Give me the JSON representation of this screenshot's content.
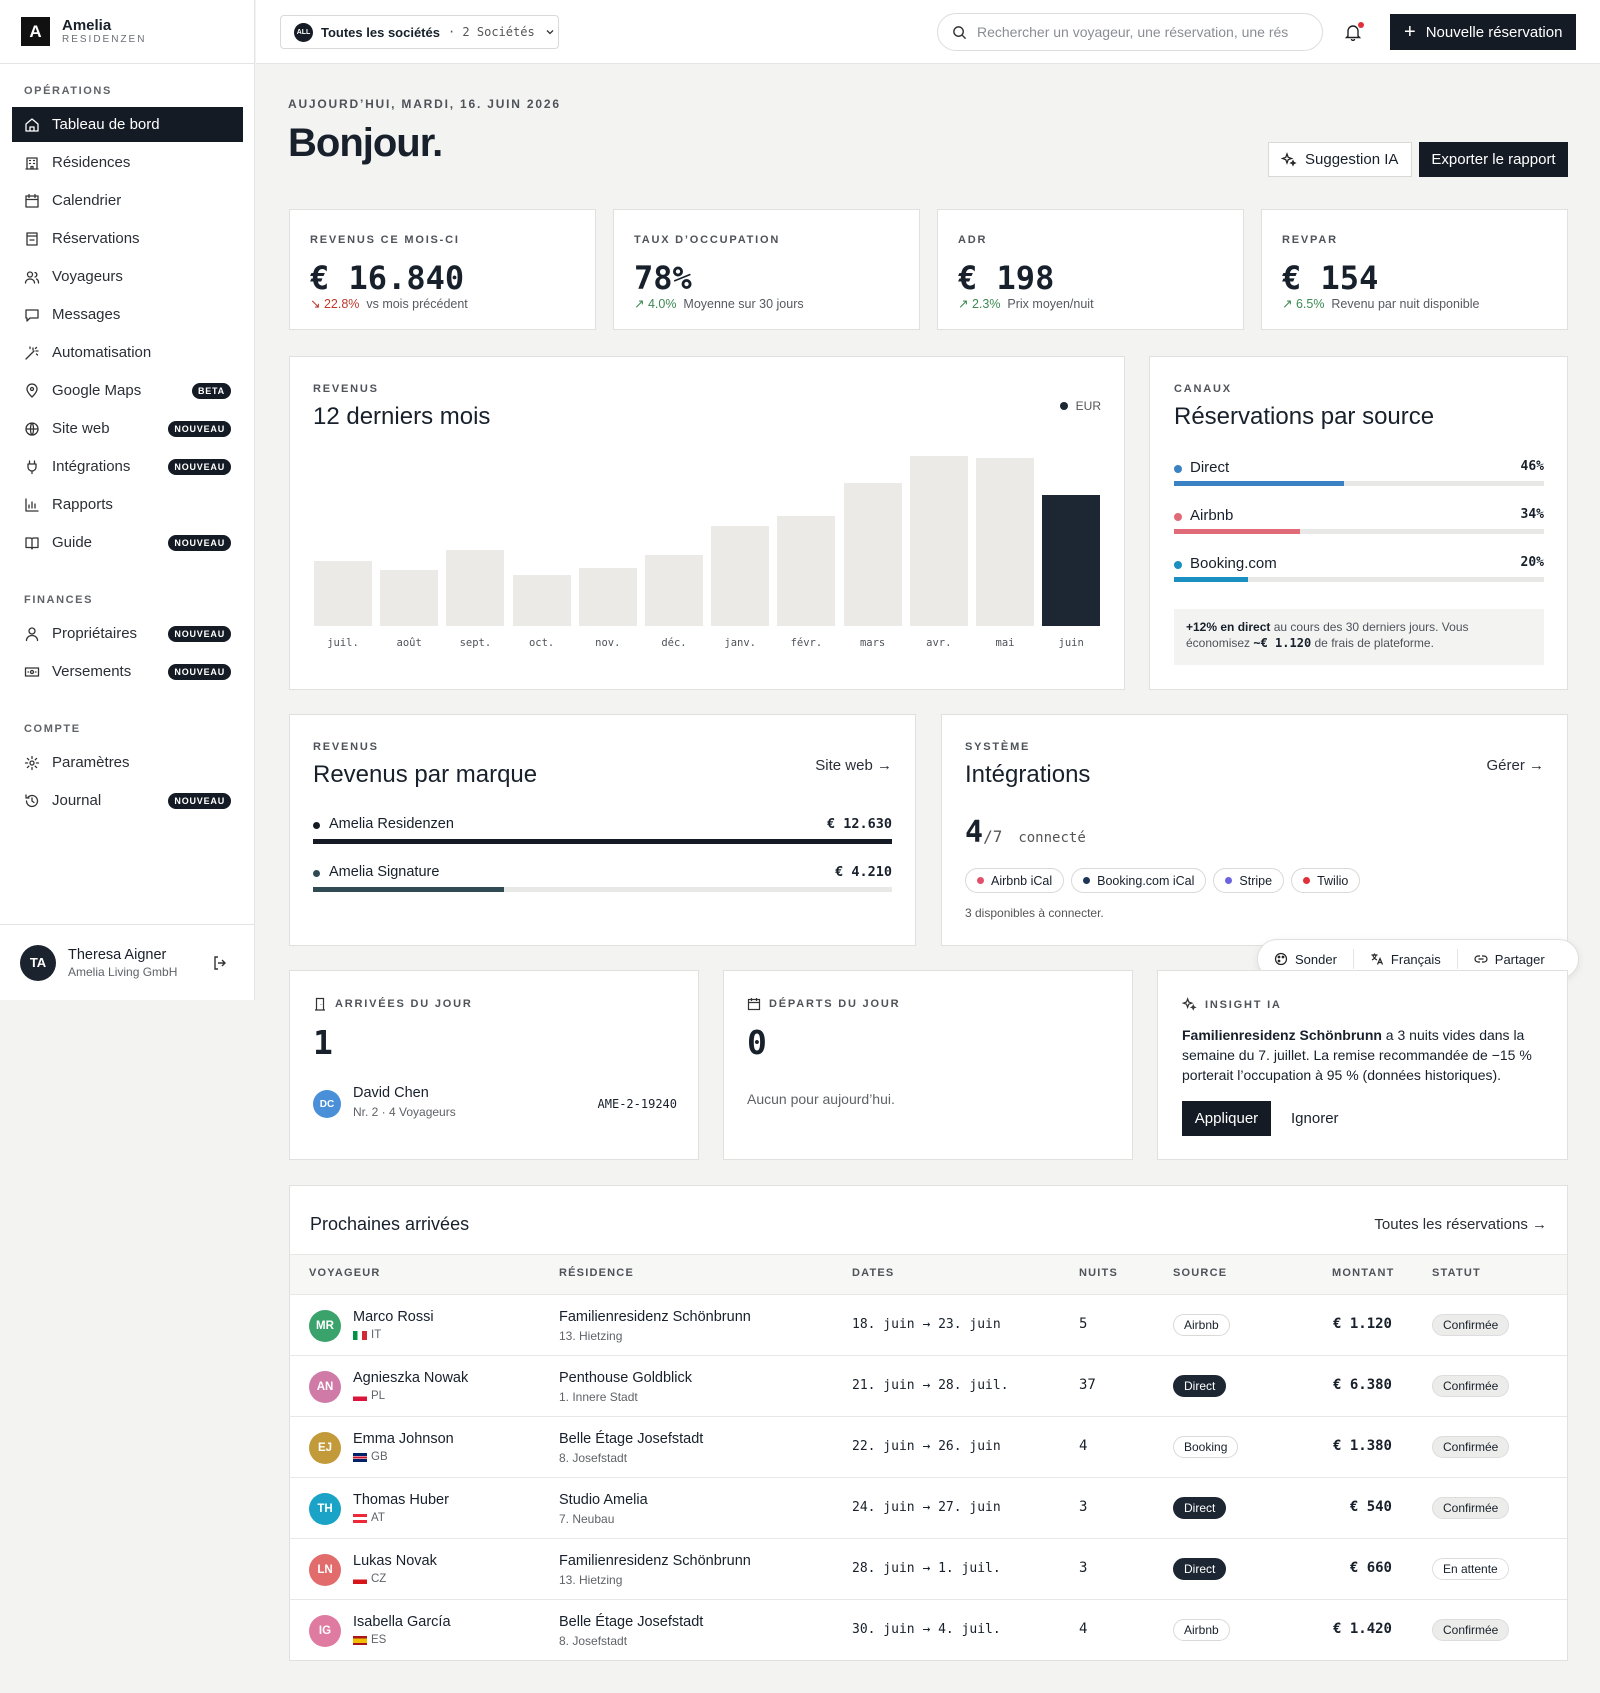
{
  "brand": {
    "logo_letter": "A",
    "name": "Amelia",
    "sub": "RESIDENZEN"
  },
  "sidebar": {
    "sections": [
      {
        "title": "OPÉRATIONS"
      },
      {
        "title": "FINANCES"
      },
      {
        "title": "COMPTE"
      }
    ],
    "items": [
      {
        "label": "Tableau de bord",
        "icon": "home-icon"
      },
      {
        "label": "Résidences",
        "icon": "building-icon"
      },
      {
        "label": "Calendrier",
        "icon": "calendar-icon"
      },
      {
        "label": "Réservations",
        "icon": "booking-icon"
      },
      {
        "label": "Voyageurs",
        "icon": "users-icon"
      },
      {
        "label": "Messages",
        "icon": "message-icon"
      },
      {
        "label": "Automatisation",
        "icon": "wand-icon"
      },
      {
        "label": "Google Maps",
        "icon": "pin-icon",
        "badge": "BETA"
      },
      {
        "label": "Site web",
        "icon": "globe-icon",
        "badge": "NOUVEAU"
      },
      {
        "label": "Intégrations",
        "icon": "plug-icon",
        "badge": "NOUVEAU"
      },
      {
        "label": "Rapports",
        "icon": "chart-icon"
      },
      {
        "label": "Guide",
        "icon": "book-icon",
        "badge": "NOUVEAU"
      },
      {
        "label": "Propriétaires",
        "icon": "owner-icon",
        "badge": "NOUVEAU"
      },
      {
        "label": "Versements",
        "icon": "payout-icon",
        "badge": "NOUVEAU"
      },
      {
        "label": "Paramètres",
        "icon": "gear-icon"
      },
      {
        "label": "Journal",
        "icon": "history-icon",
        "badge": "NOUVEAU"
      }
    ],
    "user": {
      "initials": "TA",
      "name": "Theresa Aigner",
      "company": "Amelia Living GmbH"
    }
  },
  "topbar": {
    "all_pill": "ALL",
    "company_label": "Toutes les sociétés",
    "company_count": "· 2 Sociétés",
    "search_placeholder": "Rechercher un voyageur, une réservation, une rés",
    "new_button": "Nouvelle réservation"
  },
  "header": {
    "date": "AUJOURD’HUI, MARDI, 16. JUIN 2026",
    "greeting": "Bonjour.",
    "ai_button": "Suggestion IA",
    "export_button": "Exporter le rapport"
  },
  "kpis": [
    {
      "label": "REVENUS CE MOIS-CI",
      "value": "€ 16.840",
      "delta": "↘ 22.8%",
      "trend": "down",
      "note": "vs mois précédent"
    },
    {
      "label": "TAUX D’OCCUPATION",
      "value": "78%",
      "delta": "↗ 4.0%",
      "trend": "up",
      "note": "Moyenne sur 30 jours"
    },
    {
      "label": "ADR",
      "value": "€ 198",
      "delta": "↗ 2.3%",
      "trend": "up",
      "note": "Prix moyen/nuit"
    },
    {
      "label": "REVPAR",
      "value": "€ 154",
      "delta": "↗ 6.5%",
      "trend": "up",
      "note": "Revenu par nuit disponible"
    }
  ],
  "revenue_chart": {
    "label": "REVENUS",
    "title": "12 derniers mois",
    "legend": "EUR"
  },
  "chart_data": {
    "type": "bar",
    "categories": [
      "juil.",
      "août",
      "sept.",
      "oct.",
      "nov.",
      "déc.",
      "janv.",
      "févr.",
      "mars",
      "avr.",
      "mai",
      "juin"
    ],
    "values": [
      38,
      33,
      45,
      30,
      34,
      42,
      59,
      65,
      84,
      100,
      99,
      77
    ],
    "highlight_index": 11,
    "ylim": [
      0,
      100
    ],
    "legend": [
      "EUR"
    ],
    "colors": {
      "bar": "#ebeae7",
      "highlight": "#1d2633"
    }
  },
  "channels": {
    "label": "CANAUX",
    "title": "Réservations par source",
    "rows": [
      {
        "name": "Direct",
        "pct": "46%",
        "value": 46,
        "color": "#3b82c4"
      },
      {
        "name": "Airbnb",
        "pct": "34%",
        "value": 34,
        "color": "#e06a78"
      },
      {
        "name": "Booking.com",
        "pct": "20%",
        "value": 20,
        "color": "#1a8fc2"
      }
    ],
    "note_bold": "+12% en direct",
    "note_text": " au cours des 30 derniers jours. Vous économisez ",
    "note_amount": "~€ 1.120",
    "note_end": " de frais de plateforme."
  },
  "brands": {
    "label": "REVENUS",
    "title": "Revenus par marque",
    "link": "Site web →",
    "rows": [
      {
        "name": "Amelia Residenzen",
        "amount": "€ 12.630",
        "value": 100,
        "color": "#141b24"
      },
      {
        "name": "Amelia Signature",
        "amount": "€ 4.210",
        "value": 33,
        "color": "#2f4a52"
      }
    ]
  },
  "integrations": {
    "label": "SYSTÈME",
    "title": "Intégrations",
    "link": "Gérer →",
    "count": "4",
    "total": "/7",
    "status": "connecté",
    "chips": [
      {
        "name": "Airbnb iCal",
        "color": "#e0506a"
      },
      {
        "name": "Booking.com iCal",
        "color": "#1d3557"
      },
      {
        "name": "Stripe",
        "color": "#6c63e0"
      },
      {
        "name": "Twilio",
        "color": "#e0303a"
      }
    ],
    "available": "3 disponibles à connecter."
  },
  "floatbar": {
    "sonder": "Sonder",
    "lang": "Français",
    "share": "Partager"
  },
  "arrivals": {
    "label": "ARRIVÉES DU JOUR",
    "count": "1",
    "guest_initials": "DC",
    "guest_name": "David Chen",
    "guest_meta": "Nr. 2 · 4 Voyageurs",
    "ref": "AME-2-19240"
  },
  "departures": {
    "label": "DÉPARTS DU JOUR",
    "count": "0",
    "empty": "Aucun pour aujourd’hui."
  },
  "insight": {
    "label": "INSIGHT IA",
    "bold": "Familienresidenz Schönbrunn",
    "text": " a 3 nuits vides dans la semaine du 7. juillet. La remise recommandée de −15 % porterait l’occupation à 95 % (données historiques).",
    "apply": "Appliquer",
    "ignore": "Ignorer"
  },
  "upcoming": {
    "title": "Prochaines arrivées",
    "link": "Toutes les réservations →",
    "columns": [
      "VOYAGEUR",
      "RÉSIDENCE",
      "DATES",
      "NUITS",
      "SOURCE",
      "MONTANT",
      "STATUT"
    ],
    "rows": [
      {
        "initials": "MR",
        "avatar_color": "#3aa36b",
        "name": "Marco Rossi",
        "country": "IT",
        "residence": "Familienresidenz Schönbrunn",
        "district": "13. Hietzing",
        "dates": "18. juin → 23. juin",
        "nights": "5",
        "source": "Airbnb",
        "amount": "€ 1.120",
        "status": "Confirmée"
      },
      {
        "initials": "AN",
        "avatar_color": "#d07aa7",
        "name": "Agnieszka Nowak",
        "country": "PL",
        "residence": "Penthouse Goldblick",
        "district": "1. Innere Stadt",
        "dates": "21. juin → 28. juil.",
        "nights": "37",
        "source": "Direct",
        "amount": "€ 6.380",
        "status": "Confirmée"
      },
      {
        "initials": "EJ",
        "avatar_color": "#c29a3a",
        "name": "Emma Johnson",
        "country": "GB",
        "residence": "Belle Étage Josefstadt",
        "district": "8. Josefstadt",
        "dates": "22. juin → 26. juin",
        "nights": "4",
        "source": "Booking",
        "amount": "€ 1.380",
        "status": "Confirmée"
      },
      {
        "initials": "TH",
        "avatar_color": "#1aa3c6",
        "name": "Thomas Huber",
        "country": "AT",
        "residence": "Studio Amelia",
        "district": "7. Neubau",
        "dates": "24. juin → 27. juin",
        "nights": "3",
        "source": "Direct",
        "amount": "€ 540",
        "status": "Confirmée"
      },
      {
        "initials": "LN",
        "avatar_color": "#e26b6b",
        "name": "Lukas Novak",
        "country": "CZ",
        "residence": "Familienresidenz Schönbrunn",
        "district": "13. Hietzing",
        "dates": "28. juin → 1. juil.",
        "nights": "3",
        "source": "Direct",
        "amount": "€ 660",
        "status": "En attente"
      },
      {
        "initials": "IG",
        "avatar_color": "#df7aa0",
        "name": "Isabella García",
        "country": "ES",
        "residence": "Belle Étage Josefstadt",
        "district": "8. Josefstadt",
        "dates": "30. juin → 4. juil.",
        "nights": "4",
        "source": "Airbnb",
        "amount": "€ 1.420",
        "status": "Confirmée"
      }
    ]
  }
}
